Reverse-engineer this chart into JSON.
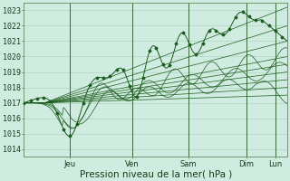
{
  "bg_color": "#d0ece0",
  "plot_bg_color": "#d0ece0",
  "grid_color": "#a8cfc0",
  "line_color": "#1a5c1a",
  "ylabel_values": [
    1014,
    1015,
    1016,
    1017,
    1018,
    1019,
    1020,
    1021,
    1022,
    1023
  ],
  "ylim": [
    1013.5,
    1023.5
  ],
  "xlabel": "Pression niveau de la mer( hPa )",
  "day_labels": [
    "Jeu",
    "Ven",
    "Sam",
    "Dim",
    "Lun"
  ],
  "day_positions": [
    0.175,
    0.41,
    0.625,
    0.845,
    0.955
  ],
  "axis_fontsize": 7,
  "tick_fontsize": 6,
  "label_fontsize": 7.5
}
